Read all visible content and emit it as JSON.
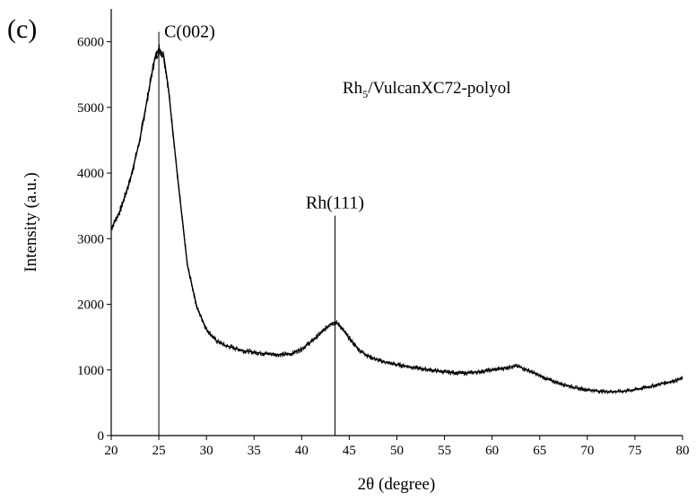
{
  "panel_label": "(c)",
  "chart_data": {
    "type": "line",
    "xlabel": "2θ (degree)",
    "ylabel": "Intensity (a.u.)",
    "xlim": [
      20,
      80
    ],
    "ylim": [
      0,
      6500
    ],
    "xticks": [
      20,
      25,
      30,
      35,
      40,
      45,
      50,
      55,
      60,
      65,
      70,
      75,
      80
    ],
    "yticks": [
      0,
      1000,
      2000,
      3000,
      4000,
      5000,
      6000
    ],
    "grid": false,
    "sample_label": {
      "main": "Rh",
      "sub": "5",
      "rest": "/VulcanXC72-polyol"
    },
    "annotations": [
      {
        "text": "C(002)",
        "x": 25.0,
        "line_top": 6150
      },
      {
        "text": "Rh(111)",
        "x": 43.5,
        "line_top": 3350
      }
    ],
    "series": [
      {
        "x": [
          20,
          21,
          22,
          23,
          24,
          24.5,
          25,
          25.5,
          26,
          27,
          28,
          29,
          30,
          31,
          32,
          33,
          34,
          35,
          36,
          37,
          38,
          39,
          40,
          41,
          42,
          43,
          43.5,
          44,
          45,
          46,
          47,
          48,
          49,
          50,
          51,
          52,
          53,
          54,
          55,
          56,
          57,
          58,
          59,
          60,
          61,
          62,
          62.5,
          63,
          64,
          65,
          66,
          67,
          68,
          69,
          70,
          71,
          72,
          73,
          74,
          75,
          76,
          77,
          78,
          79,
          80
        ],
        "y": [
          3150,
          3450,
          3900,
          4500,
          5300,
          5700,
          5900,
          5800,
          5300,
          3900,
          2600,
          1950,
          1620,
          1450,
          1370,
          1330,
          1290,
          1270,
          1250,
          1240,
          1230,
          1250,
          1320,
          1430,
          1560,
          1700,
          1730,
          1680,
          1480,
          1310,
          1210,
          1150,
          1110,
          1080,
          1060,
          1030,
          1010,
          990,
          970,
          960,
          950,
          960,
          980,
          1000,
          1020,
          1050,
          1060,
          1040,
          980,
          910,
          850,
          800,
          760,
          720,
          700,
          680,
          670,
          670,
          680,
          700,
          730,
          760,
          800,
          830,
          870
        ]
      }
    ]
  }
}
